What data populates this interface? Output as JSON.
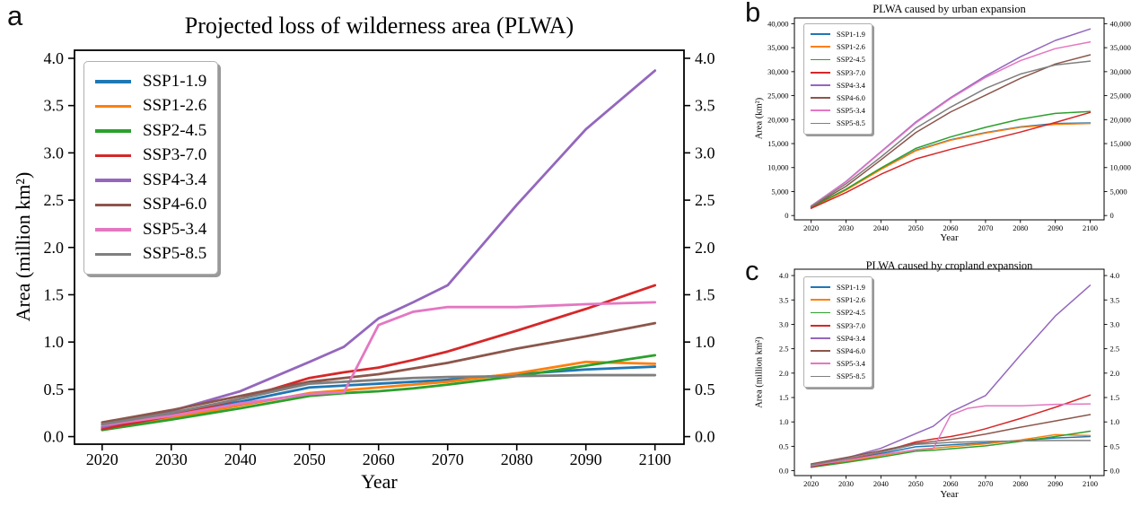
{
  "panels": {
    "a": {
      "label": "a"
    },
    "b": {
      "label": "b"
    },
    "c": {
      "label": "c"
    }
  },
  "chart_data": [
    {
      "id": "a",
      "type": "line",
      "title": "Projected loss of wilderness area (PLWA)",
      "xlabel": "Year",
      "ylabel": "Area (million km²)",
      "grid": false,
      "legend_position": "upper left",
      "xlim": [
        2016,
        2104.2
      ],
      "ylim": [
        -0.08,
        4.085
      ],
      "xticks": [
        2020,
        2030,
        2040,
        2050,
        2060,
        2070,
        2080,
        2090,
        2100
      ],
      "xtick_labels": [
        "2020",
        "2030",
        "2040",
        "2050",
        "2060",
        "2070",
        "2080",
        "2090",
        "2100"
      ],
      "yticks": [
        0.0,
        0.5,
        1.0,
        1.5,
        2.0,
        2.5,
        3.0,
        3.5,
        4.0
      ],
      "ytick_labels": [
        "0.0",
        "0.5",
        "1.0",
        "1.5",
        "2.0",
        "2.5",
        "3.0",
        "3.5",
        "4.0"
      ],
      "x": [
        2020,
        2030,
        2040,
        2050,
        2055,
        2060,
        2065,
        2070,
        2080,
        2090,
        2100
      ],
      "series": [
        {
          "name": "SSP1-1.9",
          "color": "#1f77b4",
          "values": [
            0.1,
            0.23,
            0.37,
            0.52,
            0.54,
            0.56,
            0.58,
            0.6,
            0.66,
            0.71,
            0.74
          ]
        },
        {
          "name": "SSP1-2.6",
          "color": "#ff7f0e",
          "values": [
            0.08,
            0.2,
            0.33,
            0.46,
            0.49,
            0.52,
            0.55,
            0.58,
            0.67,
            0.79,
            0.77
          ]
        },
        {
          "name": "SSP2-4.5",
          "color": "#2ca02c",
          "values": [
            0.07,
            0.18,
            0.3,
            0.43,
            0.46,
            0.48,
            0.51,
            0.55,
            0.64,
            0.75,
            0.86
          ]
        },
        {
          "name": "SSP3-7.0",
          "color": "#d62728",
          "values": [
            0.08,
            0.22,
            0.4,
            0.62,
            0.68,
            0.73,
            0.81,
            0.9,
            1.12,
            1.35,
            1.6
          ]
        },
        {
          "name": "SSP4-3.4",
          "color": "#9467bd",
          "values": [
            0.1,
            0.27,
            0.48,
            0.79,
            0.95,
            1.25,
            1.42,
            1.6,
            2.45,
            3.25,
            3.87
          ]
        },
        {
          "name": "SSP4-6.0",
          "color": "#8c564b",
          "values": [
            0.15,
            0.28,
            0.43,
            0.58,
            0.62,
            0.66,
            0.72,
            0.78,
            0.93,
            1.06,
            1.2
          ]
        },
        {
          "name": "SSP5-3.4",
          "color": "#e377c2",
          "values": [
            0.12,
            0.22,
            0.35,
            0.45,
            0.47,
            1.18,
            1.32,
            1.37,
            1.37,
            1.4,
            1.42
          ]
        },
        {
          "name": "SSP5-8.5",
          "color": "#7f7f7f",
          "values": [
            0.13,
            0.25,
            0.4,
            0.56,
            0.58,
            0.6,
            0.62,
            0.63,
            0.64,
            0.65,
            0.65
          ]
        }
      ]
    },
    {
      "id": "b",
      "type": "line",
      "title": "PLWA caused by urban expansion",
      "xlabel": "Year",
      "ylabel": "Area (km²)",
      "grid": false,
      "legend_position": "upper left",
      "xlim": [
        2015.2,
        2104
      ],
      "ylim": [
        -900,
        41200
      ],
      "xticks": [
        2020,
        2030,
        2040,
        2050,
        2060,
        2070,
        2080,
        2090,
        2100
      ],
      "xtick_labels": [
        "2020",
        "2030",
        "2040",
        "2050",
        "2060",
        "2070",
        "2080",
        "2090",
        "2100"
      ],
      "yticks": [
        0,
        5000,
        10000,
        15000,
        20000,
        25000,
        30000,
        35000,
        40000
      ],
      "ytick_labels": [
        "0",
        "5,000",
        "10,000",
        "15,000",
        "20,000",
        "25,000",
        "30,000",
        "35,000",
        "40,000"
      ],
      "x": [
        2020,
        2030,
        2040,
        2050,
        2060,
        2070,
        2080,
        2090,
        2100
      ],
      "series": [
        {
          "name": "SSP1-1.9",
          "color": "#1f77b4",
          "values": [
            1700,
            5400,
            9700,
            13600,
            15800,
            17300,
            18500,
            19200,
            19300
          ]
        },
        {
          "name": "SSP1-2.6",
          "color": "#ff7f0e",
          "values": [
            1600,
            5300,
            9600,
            13500,
            15700,
            17200,
            18400,
            19000,
            19200
          ]
        },
        {
          "name": "SSP2-4.5",
          "color": "#2ca02c",
          "values": [
            1700,
            5500,
            9900,
            14000,
            16400,
            18400,
            20100,
            21300,
            21700
          ]
        },
        {
          "name": "SSP3-7.0",
          "color": "#d62728",
          "values": [
            1500,
            4800,
            8600,
            11800,
            13800,
            15600,
            17400,
            19400,
            21500
          ]
        },
        {
          "name": "SSP4-3.4",
          "color": "#9467bd",
          "values": [
            2000,
            7100,
            13300,
            19500,
            24600,
            29100,
            33100,
            36500,
            38900
          ]
        },
        {
          "name": "SSP4-6.0",
          "color": "#8c564b",
          "values": [
            1800,
            6100,
            11600,
            17300,
            21600,
            25100,
            28600,
            31600,
            33500
          ]
        },
        {
          "name": "SSP5-3.4",
          "color": "#e377c2",
          "values": [
            2000,
            7000,
            13200,
            19300,
            24400,
            28800,
            32300,
            34800,
            36200
          ]
        },
        {
          "name": "SSP5-8.5",
          "color": "#7f7f7f",
          "values": [
            1900,
            6600,
            12200,
            18200,
            22600,
            26500,
            29500,
            31400,
            32200
          ]
        }
      ]
    },
    {
      "id": "c",
      "type": "line",
      "title": "PLWA caused by cropland expansion",
      "xlabel": "Year",
      "ylabel": "Area (million km²)",
      "grid": false,
      "legend_position": "upper left",
      "xlim": [
        2015.2,
        2104
      ],
      "ylim": [
        -0.1,
        4.13
      ],
      "xticks": [
        2020,
        2030,
        2040,
        2050,
        2060,
        2070,
        2080,
        2090,
        2100
      ],
      "xtick_labels": [
        "2020",
        "2030",
        "2040",
        "2050",
        "2060",
        "2070",
        "2080",
        "2090",
        "2100"
      ],
      "yticks": [
        0.0,
        0.5,
        1.0,
        1.5,
        2.0,
        2.5,
        3.0,
        3.5,
        4.0
      ],
      "ytick_labels": [
        "0.0",
        "0.5",
        "1.0",
        "1.5",
        "2.0",
        "2.5",
        "3.0",
        "3.5",
        "4.0"
      ],
      "x": [
        2020,
        2030,
        2040,
        2050,
        2055,
        2060,
        2065,
        2070,
        2080,
        2090,
        2100
      ],
      "series": [
        {
          "name": "SSP1-1.9",
          "color": "#1f77b4",
          "values": [
            0.09,
            0.21,
            0.35,
            0.49,
            0.51,
            0.53,
            0.55,
            0.57,
            0.62,
            0.67,
            0.7
          ]
        },
        {
          "name": "SSP1-2.6",
          "color": "#ff7f0e",
          "values": [
            0.08,
            0.19,
            0.31,
            0.43,
            0.46,
            0.49,
            0.52,
            0.55,
            0.63,
            0.74,
            0.72
          ]
        },
        {
          "name": "SSP2-4.5",
          "color": "#2ca02c",
          "values": [
            0.07,
            0.17,
            0.28,
            0.4,
            0.42,
            0.45,
            0.48,
            0.51,
            0.6,
            0.7,
            0.81
          ]
        },
        {
          "name": "SSP3-7.0",
          "color": "#d62728",
          "values": [
            0.08,
            0.21,
            0.38,
            0.59,
            0.65,
            0.7,
            0.77,
            0.86,
            1.07,
            1.3,
            1.55
          ]
        },
        {
          "name": "SSP4-3.4",
          "color": "#9467bd",
          "values": [
            0.09,
            0.26,
            0.46,
            0.76,
            0.91,
            1.2,
            1.37,
            1.54,
            2.37,
            3.17,
            3.8
          ]
        },
        {
          "name": "SSP4-6.0",
          "color": "#8c564b",
          "values": [
            0.14,
            0.27,
            0.41,
            0.56,
            0.6,
            0.64,
            0.69,
            0.75,
            0.89,
            1.02,
            1.15
          ]
        },
        {
          "name": "SSP5-3.4",
          "color": "#e377c2",
          "values": [
            0.11,
            0.21,
            0.33,
            0.43,
            0.45,
            1.14,
            1.28,
            1.33,
            1.33,
            1.36,
            1.37
          ]
        },
        {
          "name": "SSP5-8.5",
          "color": "#7f7f7f",
          "values": [
            0.12,
            0.24,
            0.38,
            0.54,
            0.56,
            0.58,
            0.59,
            0.6,
            0.61,
            0.62,
            0.62
          ]
        }
      ]
    }
  ]
}
